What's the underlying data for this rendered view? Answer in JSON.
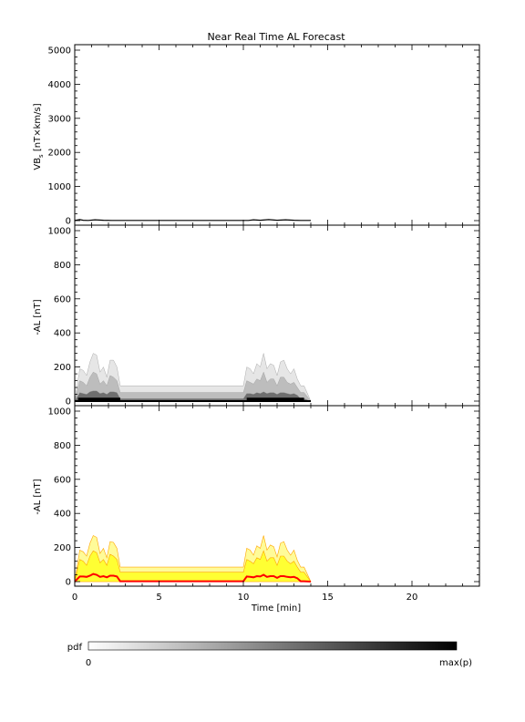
{
  "chart_data": {
    "title": "Near Real Time AL Forecast",
    "x": {
      "label": "Time [min]",
      "range": [
        0,
        24
      ],
      "ticks": [
        0,
        5,
        10,
        15,
        20
      ],
      "tick_labels": [
        "0",
        "5",
        "10",
        "15",
        "20"
      ],
      "minor_step": 1
    },
    "panels": [
      {
        "name": "vbs-panel",
        "type": "line",
        "ylabel": "VBs [nT×km/s]",
        "ylabel_main": "VB",
        "ylabel_sub": "s",
        "ylabel_rest": " [nT×km/s]",
        "ylim": [
          0,
          5000
        ],
        "yticks": [
          0,
          1000,
          2000,
          3000,
          4000,
          5000
        ],
        "ytick_labels": [
          "0",
          "1000",
          "2000",
          "3000",
          "4000",
          "5000"
        ],
        "series": [
          {
            "x": [
              0,
              0.3,
              0.5,
              0.8,
              1.2,
              1.7,
              2.2,
              2.6,
              4,
              6,
              8,
              10,
              10.3,
              10.6,
              11,
              11.5,
              12,
              12.5,
              13,
              13.4,
              14
            ],
            "y": [
              5,
              30,
              10,
              5,
              25,
              10,
              5,
              5,
              5,
              5,
              5,
              5,
              5,
              25,
              10,
              30,
              10,
              25,
              10,
              5,
              5
            ]
          }
        ]
      },
      {
        "name": "al-pdf-panel",
        "type": "heatmap",
        "ylabel": "-AL [nT]",
        "ylim": [
          0,
          1000
        ],
        "yticks": [
          0,
          200,
          400,
          600,
          800,
          1000
        ],
        "ytick_labels": [
          "0",
          "200",
          "400",
          "600",
          "800",
          "1000"
        ],
        "x": [
          0,
          0.3,
          0.5,
          0.7,
          0.9,
          1.1,
          1.3,
          1.5,
          1.7,
          1.9,
          2.1,
          2.3,
          2.5,
          2.7,
          4,
          6,
          8,
          10,
          10.2,
          10.4,
          10.6,
          10.8,
          11,
          11.2,
          11.4,
          11.6,
          11.8,
          12,
          12.2,
          12.4,
          12.6,
          12.8,
          13,
          13.2,
          13.4,
          13.6,
          14
        ],
        "p95": [
          0,
          190,
          180,
          150,
          230,
          280,
          270,
          170,
          200,
          140,
          240,
          240,
          200,
          90,
          90,
          90,
          90,
          90,
          200,
          190,
          160,
          220,
          200,
          280,
          190,
          220,
          210,
          150,
          230,
          240,
          190,
          160,
          190,
          130,
          90,
          90,
          0
        ],
        "p75": [
          0,
          120,
          110,
          90,
          140,
          170,
          160,
          100,
          120,
          90,
          150,
          140,
          120,
          50,
          50,
          50,
          50,
          50,
          120,
          110,
          100,
          130,
          120,
          170,
          110,
          130,
          130,
          90,
          140,
          140,
          110,
          100,
          110,
          80,
          50,
          50,
          0
        ],
        "p50": [
          0,
          50,
          45,
          40,
          55,
          60,
          60,
          45,
          50,
          40,
          55,
          55,
          50,
          15,
          15,
          15,
          15,
          15,
          45,
          45,
          40,
          50,
          45,
          55,
          45,
          50,
          50,
          40,
          50,
          50,
          45,
          40,
          45,
          35,
          15,
          15,
          0
        ]
      },
      {
        "name": "al-forecast-panel",
        "type": "area",
        "ylabel": "-AL [nT]",
        "ylim": [
          0,
          1000
        ],
        "yticks": [
          0,
          200,
          400,
          600,
          800,
          1000
        ],
        "ytick_labels": [
          "0",
          "200",
          "400",
          "600",
          "800",
          "1000"
        ],
        "x": [
          0,
          0.3,
          0.5,
          0.7,
          0.9,
          1.1,
          1.3,
          1.5,
          1.7,
          1.9,
          2.1,
          2.3,
          2.5,
          2.7,
          4,
          6,
          8,
          10,
          10.2,
          10.4,
          10.6,
          10.8,
          11,
          11.2,
          11.4,
          11.6,
          11.8,
          12,
          12.2,
          12.4,
          12.6,
          12.8,
          13,
          13.2,
          13.4,
          13.6,
          14
        ],
        "upper": [
          0,
          185,
          175,
          150,
          225,
          270,
          260,
          165,
          195,
          140,
          235,
          230,
          195,
          85,
          85,
          85,
          85,
          85,
          195,
          185,
          155,
          210,
          195,
          270,
          185,
          215,
          205,
          145,
          225,
          235,
          185,
          155,
          185,
          125,
          85,
          85,
          0
        ],
        "inner": [
          0,
          130,
          120,
          95,
          150,
          180,
          170,
          110,
          130,
          95,
          160,
          150,
          130,
          55,
          55,
          55,
          55,
          55,
          130,
          120,
          105,
          140,
          130,
          180,
          120,
          140,
          140,
          95,
          150,
          150,
          120,
          105,
          120,
          85,
          55,
          55,
          0
        ],
        "median": [
          0,
          30,
          30,
          28,
          35,
          45,
          40,
          28,
          32,
          25,
          35,
          35,
          30,
          2,
          2,
          2,
          2,
          2,
          30,
          28,
          25,
          32,
          30,
          40,
          28,
          32,
          32,
          22,
          32,
          32,
          28,
          25,
          28,
          20,
          2,
          2,
          0
        ]
      }
    ],
    "colors": {
      "median_line": "#ff0000",
      "band_fill": "#fffb99",
      "inner_fill": "#ffff33",
      "band_edge": "#ffa500",
      "bar_start": "#ffffff",
      "bar_end": "#000000"
    }
  },
  "colorbar": {
    "label": "pdf",
    "min_label": "0",
    "max_label": "max(p)"
  }
}
